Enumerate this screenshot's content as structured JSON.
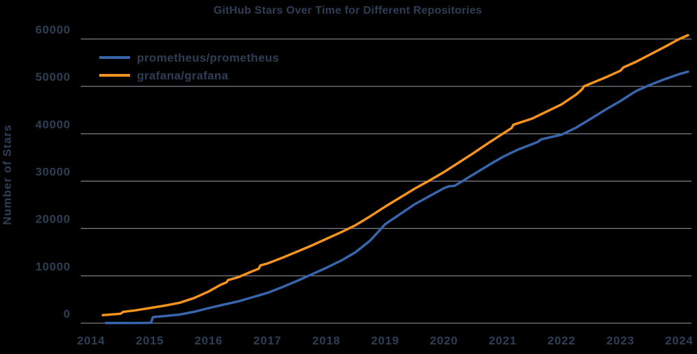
{
  "colors": {
    "background": "#000000",
    "text": "#2e3e55",
    "grid": "#9aa0a5",
    "prometheus_blue": "#3866ad",
    "grafana_orange": "#f7941e"
  },
  "chart_data": {
    "type": "line",
    "title": "GitHub Stars Over Time for Different Repositories",
    "xlabel": "",
    "ylabel": "Number of Stars",
    "xlim": [
      2013.95,
      2024.25
    ],
    "ylim": [
      0,
      60000
    ],
    "x_ticks": [
      2014,
      2015,
      2016,
      2017,
      2018,
      2019,
      2020,
      2021,
      2022,
      2023,
      2024
    ],
    "y_ticks": [
      0,
      10000,
      20000,
      30000,
      40000,
      50000,
      60000
    ],
    "grid": "horizontal",
    "legend_position": "upper-left",
    "series": [
      {
        "name": "prometheus/prometheus",
        "color": "#3866ad",
        "points": [
          [
            2014.25,
            30
          ],
          [
            2014.6,
            40
          ],
          [
            2014.95,
            60
          ],
          [
            2015.02,
            80
          ],
          [
            2015.05,
            1250
          ],
          [
            2015.1,
            1350
          ],
          [
            2015.25,
            1500
          ],
          [
            2015.5,
            1800
          ],
          [
            2015.75,
            2400
          ],
          [
            2016.0,
            3200
          ],
          [
            2016.25,
            3900
          ],
          [
            2016.5,
            4600
          ],
          [
            2016.75,
            5500
          ],
          [
            2017.0,
            6400
          ],
          [
            2017.25,
            7600
          ],
          [
            2017.5,
            8900
          ],
          [
            2017.75,
            10300
          ],
          [
            2018.0,
            11700
          ],
          [
            2018.25,
            13200
          ],
          [
            2018.5,
            15000
          ],
          [
            2018.75,
            17500
          ],
          [
            2019.0,
            20900
          ],
          [
            2019.25,
            23000
          ],
          [
            2019.5,
            25100
          ],
          [
            2019.75,
            26800
          ],
          [
            2020.0,
            28500
          ],
          [
            2020.08,
            28900
          ],
          [
            2020.18,
            29000
          ],
          [
            2020.3,
            29900
          ],
          [
            2020.5,
            31400
          ],
          [
            2020.75,
            33300
          ],
          [
            2021.0,
            35100
          ],
          [
            2021.25,
            36600
          ],
          [
            2021.5,
            37800
          ],
          [
            2021.6,
            38300
          ],
          [
            2021.65,
            38800
          ],
          [
            2022.0,
            39800
          ],
          [
            2022.25,
            41300
          ],
          [
            2022.5,
            43200
          ],
          [
            2022.75,
            45100
          ],
          [
            2023.0,
            46900
          ],
          [
            2023.2,
            48500
          ],
          [
            2023.28,
            49100
          ],
          [
            2023.5,
            50300
          ],
          [
            2023.75,
            51500
          ],
          [
            2024.0,
            52600
          ],
          [
            2024.15,
            53100
          ]
        ]
      },
      {
        "name": "grafana/grafana",
        "color": "#f7941e",
        "points": [
          [
            2014.2,
            1700
          ],
          [
            2014.35,
            1850
          ],
          [
            2014.5,
            2000
          ],
          [
            2014.55,
            2400
          ],
          [
            2014.75,
            2700
          ],
          [
            2015.0,
            3200
          ],
          [
            2015.25,
            3700
          ],
          [
            2015.5,
            4300
          ],
          [
            2015.75,
            5300
          ],
          [
            2016.0,
            6700
          ],
          [
            2016.2,
            8100
          ],
          [
            2016.3,
            8600
          ],
          [
            2016.33,
            9100
          ],
          [
            2016.5,
            9700
          ],
          [
            2016.75,
            11000
          ],
          [
            2016.85,
            11500
          ],
          [
            2016.88,
            12200
          ],
          [
            2017.0,
            12600
          ],
          [
            2017.25,
            13800
          ],
          [
            2017.5,
            15100
          ],
          [
            2017.75,
            16400
          ],
          [
            2018.0,
            17800
          ],
          [
            2018.25,
            19200
          ],
          [
            2018.5,
            20700
          ],
          [
            2018.75,
            22600
          ],
          [
            2019.0,
            24600
          ],
          [
            2019.25,
            26500
          ],
          [
            2019.5,
            28400
          ],
          [
            2019.75,
            30100
          ],
          [
            2020.0,
            31900
          ],
          [
            2020.25,
            33900
          ],
          [
            2020.5,
            35900
          ],
          [
            2020.75,
            38000
          ],
          [
            2021.0,
            40000
          ],
          [
            2021.15,
            41200
          ],
          [
            2021.18,
            41900
          ],
          [
            2021.5,
            43200
          ],
          [
            2021.75,
            44700
          ],
          [
            2022.0,
            46200
          ],
          [
            2022.25,
            48300
          ],
          [
            2022.35,
            49400
          ],
          [
            2022.38,
            50000
          ],
          [
            2022.75,
            51900
          ],
          [
            2023.0,
            53300
          ],
          [
            2023.05,
            54000
          ],
          [
            2023.25,
            55100
          ],
          [
            2023.5,
            56700
          ],
          [
            2023.75,
            58300
          ],
          [
            2024.0,
            60000
          ],
          [
            2024.15,
            60800
          ]
        ]
      }
    ]
  }
}
